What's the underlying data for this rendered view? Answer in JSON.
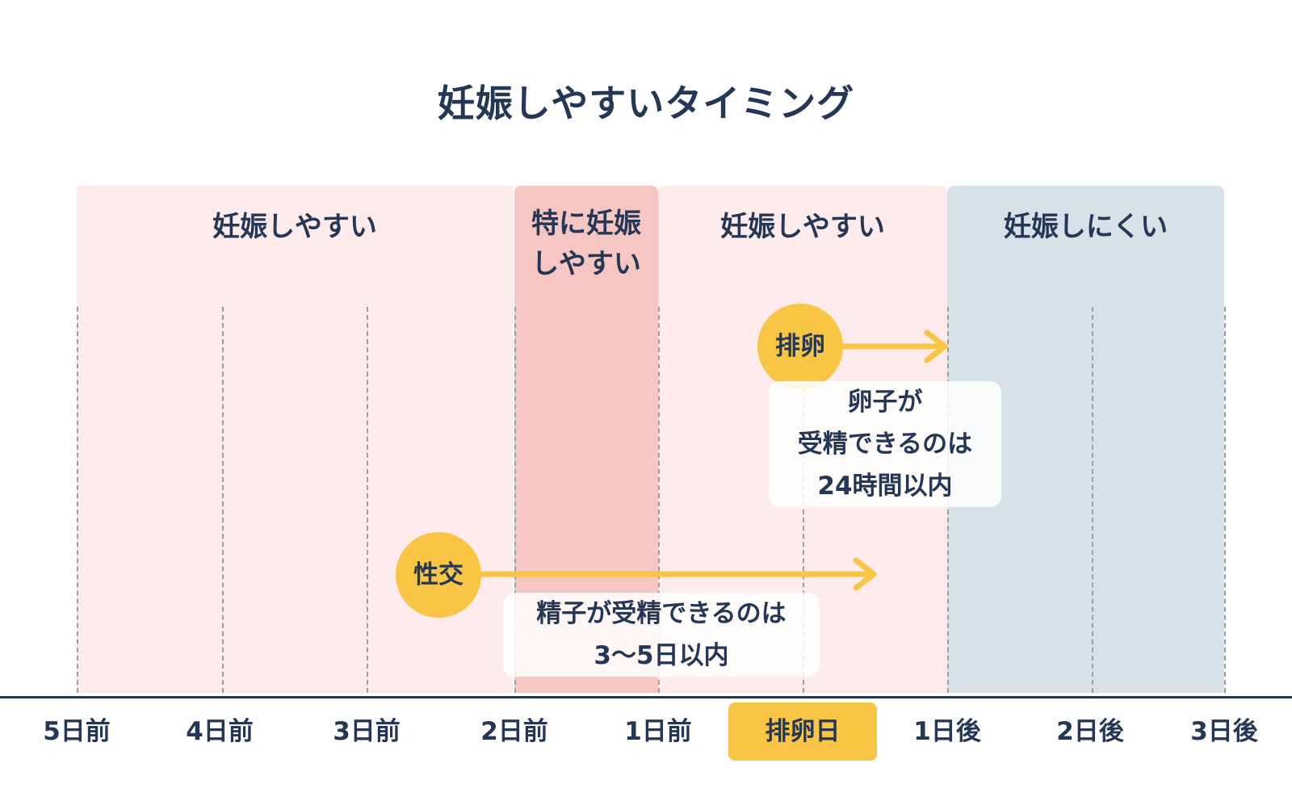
{
  "title": "妊娠しやすいタイミング",
  "zones": [
    {
      "label": "妊娠しやすい",
      "color": "#fdeceb"
    },
    {
      "label": "特に妊娠\nしやすい",
      "color": "#f5c6c2"
    },
    {
      "label": "妊娠しやすい",
      "color": "#fdeceb"
    },
    {
      "label": "妊娠しにくい",
      "color": "#d6e1e8"
    }
  ],
  "axis": {
    "ticks": [
      "5日前",
      "4日前",
      "3日前",
      "2日前",
      "1日前",
      "排卵日",
      "1日後",
      "2日後",
      "3日後"
    ],
    "highlighted": "排卵日"
  },
  "events": {
    "ovulation": {
      "label": "排卵",
      "note": "卵子が\n受精できるのは\n24時間以内"
    },
    "intercourse": {
      "label": "性交",
      "note": "精子が受精できるのは\n3〜5日以内"
    }
  },
  "colors": {
    "accent": "#f9c545",
    "text": "#243757"
  }
}
